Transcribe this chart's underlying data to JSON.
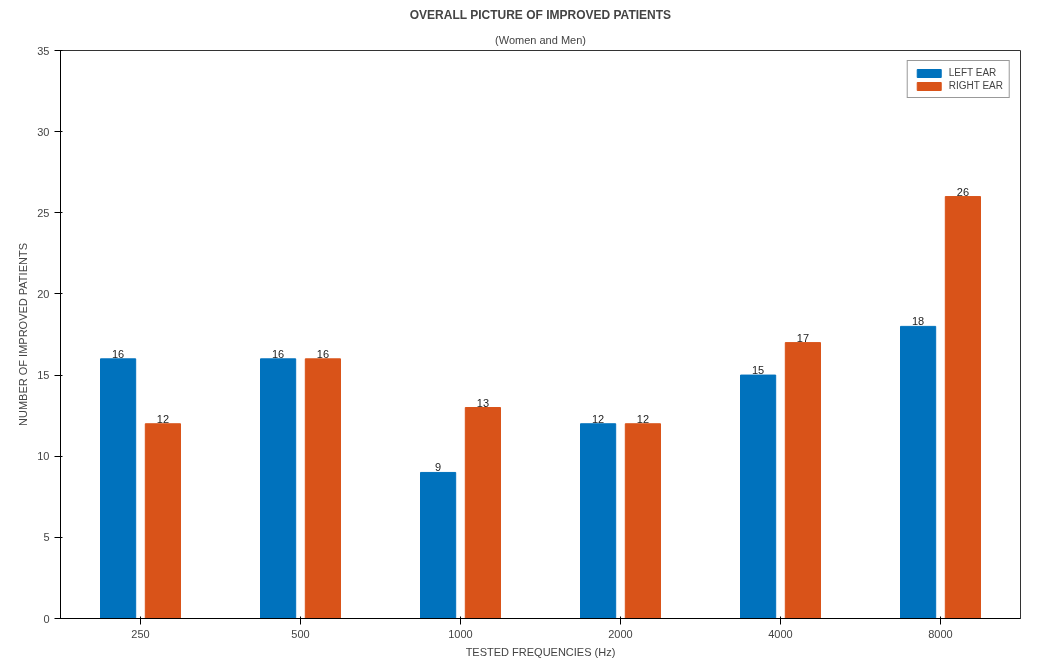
{
  "chart_data": {
    "type": "bar",
    "title": "OVERALL PICTURE OF IMPROVED PATIENTS",
    "subtitle": "(Women and Men)",
    "xlabel": "TESTED FREQUENCIES (Hz)",
    "ylabel": "NUMBER OF IMPROVED PATIENTS",
    "categories": [
      "250",
      "500",
      "1000",
      "2000",
      "4000",
      "8000"
    ],
    "series": [
      {
        "name": "LEFT EAR",
        "color": "#0072bd",
        "values": [
          16,
          16,
          9,
          12,
          15,
          18
        ]
      },
      {
        "name": "RIGHT EAR",
        "color": "#d95319",
        "values": [
          12,
          16,
          13,
          12,
          17,
          26
        ]
      }
    ],
    "ylim": [
      0,
      35
    ],
    "yticks": [
      0,
      5,
      10,
      15,
      20,
      25,
      30,
      35
    ],
    "data_labels": true,
    "legend": "top right",
    "grid": false
  }
}
